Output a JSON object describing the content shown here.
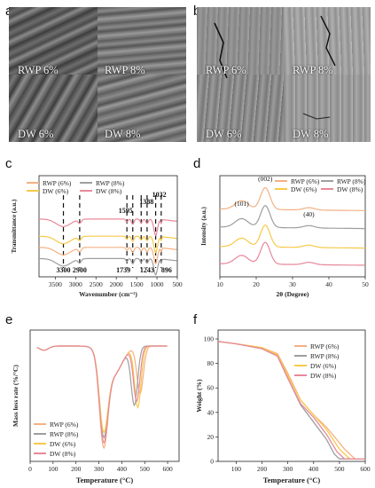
{
  "figure": {
    "letters": [
      "a",
      "b",
      "c",
      "d",
      "e",
      "f"
    ]
  },
  "panel_a": {
    "labels": [
      "RWP 6%",
      "RWP 8%",
      "DW 6%",
      "DW 8%"
    ]
  },
  "panel_b": {
    "labels": [
      "RWP 6%",
      "RWP 8%",
      "DW 6%",
      "DW 8%"
    ]
  },
  "chart_data": [
    {
      "id": "c",
      "type": "line",
      "xlabel": "Wavenumber (cm⁻¹)",
      "ylabel": "Transmittance (a.u.)",
      "xlim": [
        3900,
        500
      ],
      "xticks": [
        3500,
        3000,
        2500,
        2000,
        1500,
        1000,
        500
      ],
      "legend": [
        "RWP (6%)",
        "RWP (8%)",
        "DW (6%)",
        "DW (8%)"
      ],
      "legend_placement": "top-left",
      "colors": [
        "#f4b183",
        "#9e9e9e",
        "#f7c948",
        "#e8889a"
      ],
      "peaks_top": [
        "1595",
        "1388",
        "1032"
      ],
      "peaks_bottom": [
        "3300",
        "2900",
        "1739",
        "1243",
        "896"
      ],
      "peak_positions": [
        3300,
        2900,
        1739,
        1595,
        1388,
        1243,
        1032,
        896
      ],
      "series": [
        {
          "name": "RWP (6%)",
          "offset": 0.3
        },
        {
          "name": "RWP (8%)",
          "offset": 0.15
        },
        {
          "name": "DW (6%)",
          "offset": 0.45
        },
        {
          "name": "DW (8%)",
          "offset": 0.68
        }
      ]
    },
    {
      "id": "d",
      "type": "line",
      "xlabel": "2θ (Degree)",
      "ylabel": "Intensity (a.u.)",
      "xlim": [
        10,
        50
      ],
      "xticks": [
        10,
        20,
        30,
        40,
        50
      ],
      "legend": [
        "RWP (6%)",
        "RWP (8%)",
        "DW (6%)",
        "DW (8%)"
      ],
      "legend_placement": "top-right",
      "colors": [
        "#f4b183",
        "#9e9e9e",
        "#f7c948",
        "#e8889a"
      ],
      "annotations": [
        "(101)",
        "(002)",
        "(40)"
      ],
      "series": [
        {
          "name": "RWP (6%)",
          "offset": 0.78
        },
        {
          "name": "RWP (8%)",
          "offset": 0.55
        },
        {
          "name": "DW (6%)",
          "offset": 0.3
        },
        {
          "name": "DW (8%)",
          "offset": 0.08
        }
      ]
    },
    {
      "id": "e",
      "type": "line",
      "xlabel": "Temperature (°C)",
      "ylabel": "Mass loss rate (%/°C)",
      "xlim": [
        0,
        650
      ],
      "xticks": [
        0,
        100,
        200,
        300,
        400,
        500,
        600
      ],
      "legend": [
        "RWP (6%)",
        "RWP (8%)",
        "DW    (6%)",
        "DW    (8%)"
      ],
      "legend_placement": "bottom-left",
      "colors": [
        "#f4b183",
        "#9e9e9e",
        "#f7c948",
        "#e8889a"
      ],
      "series": [
        {
          "name": "RWP (6%)",
          "peak2": 480
        },
        {
          "name": "RWP (8%)",
          "peak2": 455
        },
        {
          "name": "DW (6%)",
          "peak2": 470
        },
        {
          "name": "DW (8%)",
          "peak2": 465
        }
      ]
    },
    {
      "id": "f",
      "type": "line",
      "xlabel": "Temperature (°C)",
      "ylabel": "Weight (%)",
      "xlim": [
        30,
        600
      ],
      "ylim": [
        0,
        100
      ],
      "xticks": [
        100,
        200,
        300,
        400,
        500,
        600
      ],
      "yticks": [
        0,
        20,
        40,
        60,
        80,
        100
      ],
      "legend": [
        "RWP (6%)",
        "RWP (8%)",
        "DW    (6%)",
        "DW    (8%)"
      ],
      "legend_placement": "top-right",
      "colors": [
        "#f4b183",
        "#9e9e9e",
        "#f7c948",
        "#e8889a"
      ],
      "series": [
        {
          "name": "RWP (6%)",
          "x": [
            30,
            100,
            200,
            260,
            300,
            350,
            400,
            450,
            520,
            560,
            600
          ],
          "y": [
            98,
            96,
            93,
            88,
            72,
            50,
            38,
            28,
            10,
            2,
            2
          ]
        },
        {
          "name": "RWP (8%)",
          "x": [
            30,
            100,
            200,
            260,
            300,
            350,
            400,
            450,
            480,
            500,
            600
          ],
          "y": [
            98,
            96,
            92,
            86,
            68,
            46,
            32,
            18,
            6,
            2,
            2
          ]
        },
        {
          "name": "DW (6%)",
          "x": [
            30,
            100,
            200,
            260,
            300,
            350,
            400,
            450,
            500,
            540,
            600
          ],
          "y": [
            98,
            96,
            93,
            87,
            70,
            50,
            38,
            26,
            10,
            2,
            2
          ]
        },
        {
          "name": "DW (8%)",
          "x": [
            30,
            100,
            200,
            260,
            300,
            350,
            400,
            450,
            490,
            520,
            600
          ],
          "y": [
            98,
            96,
            92,
            86,
            68,
            47,
            36,
            22,
            8,
            2,
            2
          ]
        }
      ]
    }
  ]
}
